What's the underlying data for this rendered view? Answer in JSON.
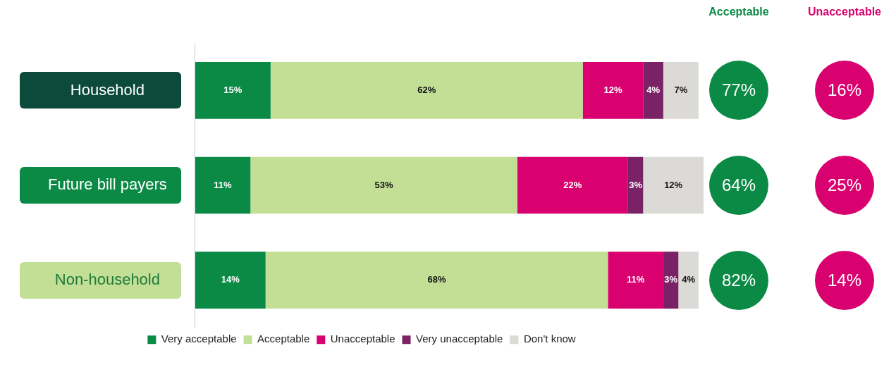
{
  "chart_data": {
    "type": "bar",
    "orientation": "horizontal",
    "stacked": true,
    "categories": [
      "Household",
      "Future bill payers",
      "Non-household"
    ],
    "series": [
      {
        "name": "Very acceptable",
        "color": "#0b8a45",
        "values": [
          15,
          11,
          14
        ],
        "value_labels": [
          "15%",
          "11%",
          "14%"
        ]
      },
      {
        "name": "Acceptable",
        "color": "#c3df96",
        "values": [
          62,
          53,
          68
        ],
        "value_labels": [
          "62%",
          "53%",
          "68%"
        ]
      },
      {
        "name": "Unacceptable",
        "color": "#d9016f",
        "values": [
          12,
          22,
          11
        ],
        "value_labels": [
          "12%",
          "22%",
          "11%"
        ]
      },
      {
        "name": "Very unacceptable",
        "color": "#7a2266",
        "values": [
          4,
          3,
          3
        ],
        "value_labels": [
          "4%",
          "3%",
          "3%"
        ]
      },
      {
        "name": "Don't know",
        "color": "#dcdad7",
        "values": [
          7,
          12,
          4
        ],
        "value_labels": [
          "7%",
          "12%",
          "4%"
        ]
      }
    ],
    "legend": "bottom",
    "grid": false,
    "annotations": [
      "Acceptable",
      "Unacceptable",
      "77%",
      "16%",
      "64%",
      "25%",
      "82%",
      "14%"
    ]
  }
}
